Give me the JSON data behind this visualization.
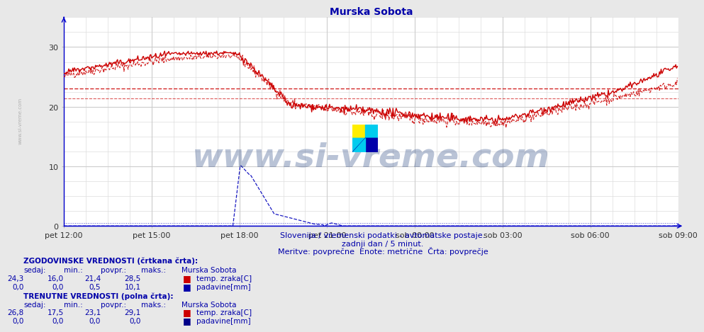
{
  "title": "Murska Sobota",
  "title_color": "#0000aa",
  "bg_color": "#e8e8e8",
  "plot_bg_color": "#ffffff",
  "grid_color": "#cccccc",
  "xlim": [
    0,
    756
  ],
  "ylim": [
    0,
    35
  ],
  "yticks": [
    0,
    10,
    20,
    30
  ],
  "xtick_labels": [
    "pet 12:00",
    "pet 15:00",
    "pet 18:00",
    "pet 21:00",
    "sob 00:00",
    "sob 03:00",
    "sob 06:00",
    "sob 09:00"
  ],
  "xtick_positions": [
    0,
    108,
    216,
    324,
    432,
    540,
    648,
    756
  ],
  "avg_hist_temp": 21.4,
  "avg_curr_temp": 23.1,
  "temp_color": "#cc0000",
  "rain_hist_color": "#0000bb",
  "rain_curr_color": "#0000dd",
  "watermark_text": "www.si-vreme.com",
  "watermark_color": "#1a3a7a",
  "watermark_alpha": 0.3,
  "sub_text1": "Slovenija / vremenski podatki - avtomatske postaje.",
  "sub_text2": "zadnji dan / 5 minut.",
  "sub_text3": "Meritve: povprečne  Enote: metrične  Črta: povprečje",
  "sub_text_color": "#0000aa",
  "legend_title1": "ZGODOVINSKE VREDNOSTI (črtkana črta):",
  "legend_title2": "TRENUTNE VREDNOSTI (polna črta):",
  "legend_color": "#0000aa",
  "station_name": "Murska Sobota",
  "col_headers": [
    "sedaj:",
    "min.:",
    "povpr.:",
    "maks.:"
  ],
  "hist_temp_vals": [
    "24,3",
    "16,0",
    "21,4",
    "28,5"
  ],
  "hist_rain_vals": [
    "0,0",
    "0,0",
    "0,5",
    "10,1"
  ],
  "curr_temp_vals": [
    "26,8",
    "17,5",
    "23,1",
    "29,1"
  ],
  "curr_rain_vals": [
    "0,0",
    "0,0",
    "0,0",
    "0,0"
  ],
  "temp_label": "temp. zraka[C]",
  "rain_label": "padavine[mm]",
  "left_label": "www.si-vreme.com",
  "left_label_color": "#999999",
  "axis_color": "#0000cc",
  "tick_color": "#333333"
}
